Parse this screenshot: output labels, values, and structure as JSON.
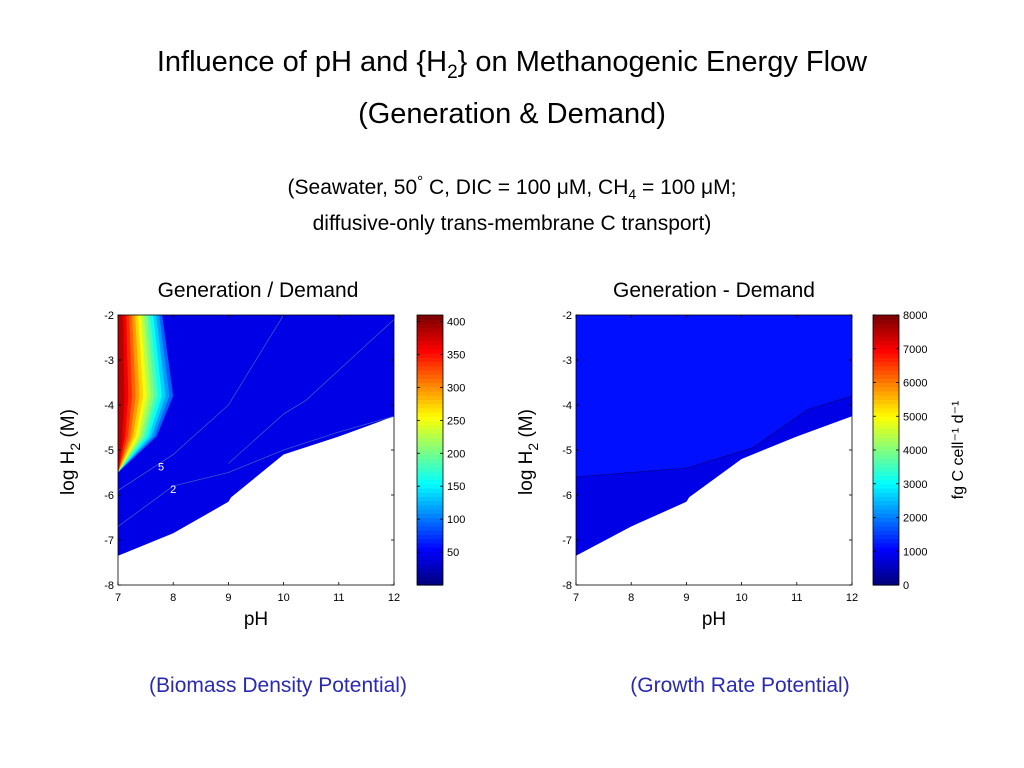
{
  "page": {
    "title_line1_main": "Influence of pH and {H",
    "title_line1_sub": "2",
    "title_line1_tail": "} on Methanogenic Energy Flow",
    "title_line2": "(Generation & Demand)",
    "subtitle_line1_a": "(Seawater, 50",
    "subtitle_line1_deg": "°",
    "subtitle_line1_b": " C, DIC = 100 ",
    "subtitle_mu1": "μ",
    "subtitle_line1_c": "M, CH",
    "subtitle_line1_sub": "4",
    "subtitle_line1_d": " = 100 ",
    "subtitle_mu2": "μ",
    "subtitle_line1_e": "M;",
    "subtitle_line2": "diffusive-only trans-membrane C transport)",
    "caption_left": "(Biomass Density Potential)",
    "caption_right": "(Growth Rate Potential)"
  },
  "chart_data": [
    {
      "type": "contour",
      "title": "Generation / Demand",
      "xlabel": "pH",
      "ylabel": "log H_2 (M)",
      "ylabel_parts": [
        "log H",
        "2",
        " (M)"
      ],
      "xlim": [
        7,
        12
      ],
      "ylim": [
        -8,
        -2
      ],
      "xticks": [
        "7",
        "8",
        "9",
        "10",
        "11",
        "12"
      ],
      "yticks": [
        "-8",
        "-7",
        "-6",
        "-5",
        "-4",
        "-3",
        "-2"
      ],
      "colorbar": {
        "min": 0,
        "max": 410,
        "ticks": [
          "50",
          "100",
          "150",
          "200",
          "250",
          "300",
          "350",
          "400"
        ],
        "label": ""
      },
      "contour_labels": [
        "5",
        "2"
      ],
      "feasible_boundary": [
        [
          7,
          -7.35
        ],
        [
          8,
          -6.85
        ],
        [
          9,
          -6.15
        ],
        [
          9.05,
          -6.05
        ],
        [
          10,
          -5.1
        ],
        [
          11,
          -4.7
        ],
        [
          12,
          -4.25
        ]
      ],
      "high_band": [
        [
          7,
          -5.5
        ],
        [
          7.7,
          -4.7
        ],
        [
          8.0,
          -3.8
        ],
        [
          7.8,
          -2
        ],
        [
          7,
          -2
        ]
      ],
      "contour_lines": [
        [
          [
            7,
            -6.7
          ],
          [
            8,
            -5.8
          ],
          [
            9,
            -5.5
          ],
          [
            10,
            -5.0
          ],
          [
            11,
            -4.6
          ],
          [
            12,
            -4.25
          ]
        ],
        [
          [
            7,
            -5.9
          ],
          [
            8,
            -5.1
          ],
          [
            9,
            -4.0
          ],
          [
            10,
            -2.0
          ]
        ],
        [
          [
            9,
            -5.3
          ],
          [
            10,
            -4.2
          ],
          [
            10.4,
            -3.9
          ],
          [
            12,
            -2.1
          ]
        ]
      ]
    },
    {
      "type": "contour",
      "title": "Generation - Demand",
      "xlabel": "pH",
      "ylabel": "log H_2 (M)",
      "ylabel_parts": [
        "log H",
        "2",
        " (M)"
      ],
      "xlim": [
        7,
        12
      ],
      "ylim": [
        -8,
        -2
      ],
      "xticks": [
        "7",
        "8",
        "9",
        "10",
        "11",
        "12"
      ],
      "yticks": [
        "-8",
        "-7",
        "-6",
        "-5",
        "-4",
        "-3",
        "-2"
      ],
      "colorbar": {
        "min": 0,
        "max": 8000,
        "ticks": [
          "0",
          "1000",
          "2000",
          "3000",
          "4000",
          "5000",
          "6000",
          "7000",
          "8000"
        ],
        "label": "fg C cell⁻¹ d⁻¹"
      },
      "feasible_boundary": [
        [
          7,
          -7.35
        ],
        [
          8,
          -6.7
        ],
        [
          9,
          -6.15
        ],
        [
          9.05,
          -6.05
        ],
        [
          10,
          -5.2
        ],
        [
          11,
          -4.7
        ],
        [
          12,
          -4.25
        ]
      ],
      "zero_line": [
        [
          7,
          -5.6
        ],
        [
          9,
          -5.4
        ],
        [
          10.2,
          -4.95
        ],
        [
          11.2,
          -4.1
        ],
        [
          12,
          -3.8
        ]
      ],
      "band_slope_left": 0.55,
      "band_slope_right": 0.25,
      "band_spacing": 0.22
    }
  ]
}
